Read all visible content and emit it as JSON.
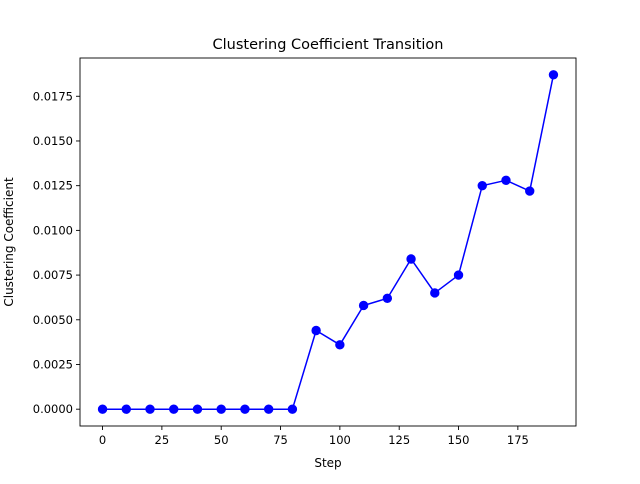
{
  "chart_data": {
    "type": "line",
    "title": "Clustering Coefficient Transition",
    "xlabel": "Step",
    "ylabel": "Clustering Coefficient",
    "xlim": [
      -9.5,
      199.5
    ],
    "ylim": [
      -0.00094,
      0.01964
    ],
    "grid": false,
    "x_ticks": [
      0,
      25,
      50,
      75,
      100,
      125,
      150,
      175
    ],
    "x_tick_labels": [
      "0",
      "25",
      "50",
      "75",
      "100",
      "125",
      "150",
      "175"
    ],
    "y_ticks": [
      0.0,
      0.0025,
      0.005,
      0.0075,
      0.01,
      0.0125,
      0.015,
      0.0175
    ],
    "y_tick_labels": [
      "0.0000",
      "0.0025",
      "0.0050",
      "0.0075",
      "0.0100",
      "0.0125",
      "0.0150",
      "0.0175"
    ],
    "series": [
      {
        "color": "#0000ff",
        "marker": "circle",
        "x": [
          0,
          10,
          20,
          30,
          40,
          50,
          60,
          70,
          80,
          90,
          100,
          110,
          120,
          130,
          140,
          150,
          160,
          170,
          180,
          190
        ],
        "y": [
          0.0,
          0.0,
          0.0,
          0.0,
          0.0,
          0.0,
          0.0,
          0.0,
          0.0,
          0.0044,
          0.0036,
          0.0058,
          0.0062,
          0.0084,
          0.0065,
          0.0075,
          0.0125,
          0.0128,
          0.0122,
          0.0187
        ]
      }
    ]
  }
}
